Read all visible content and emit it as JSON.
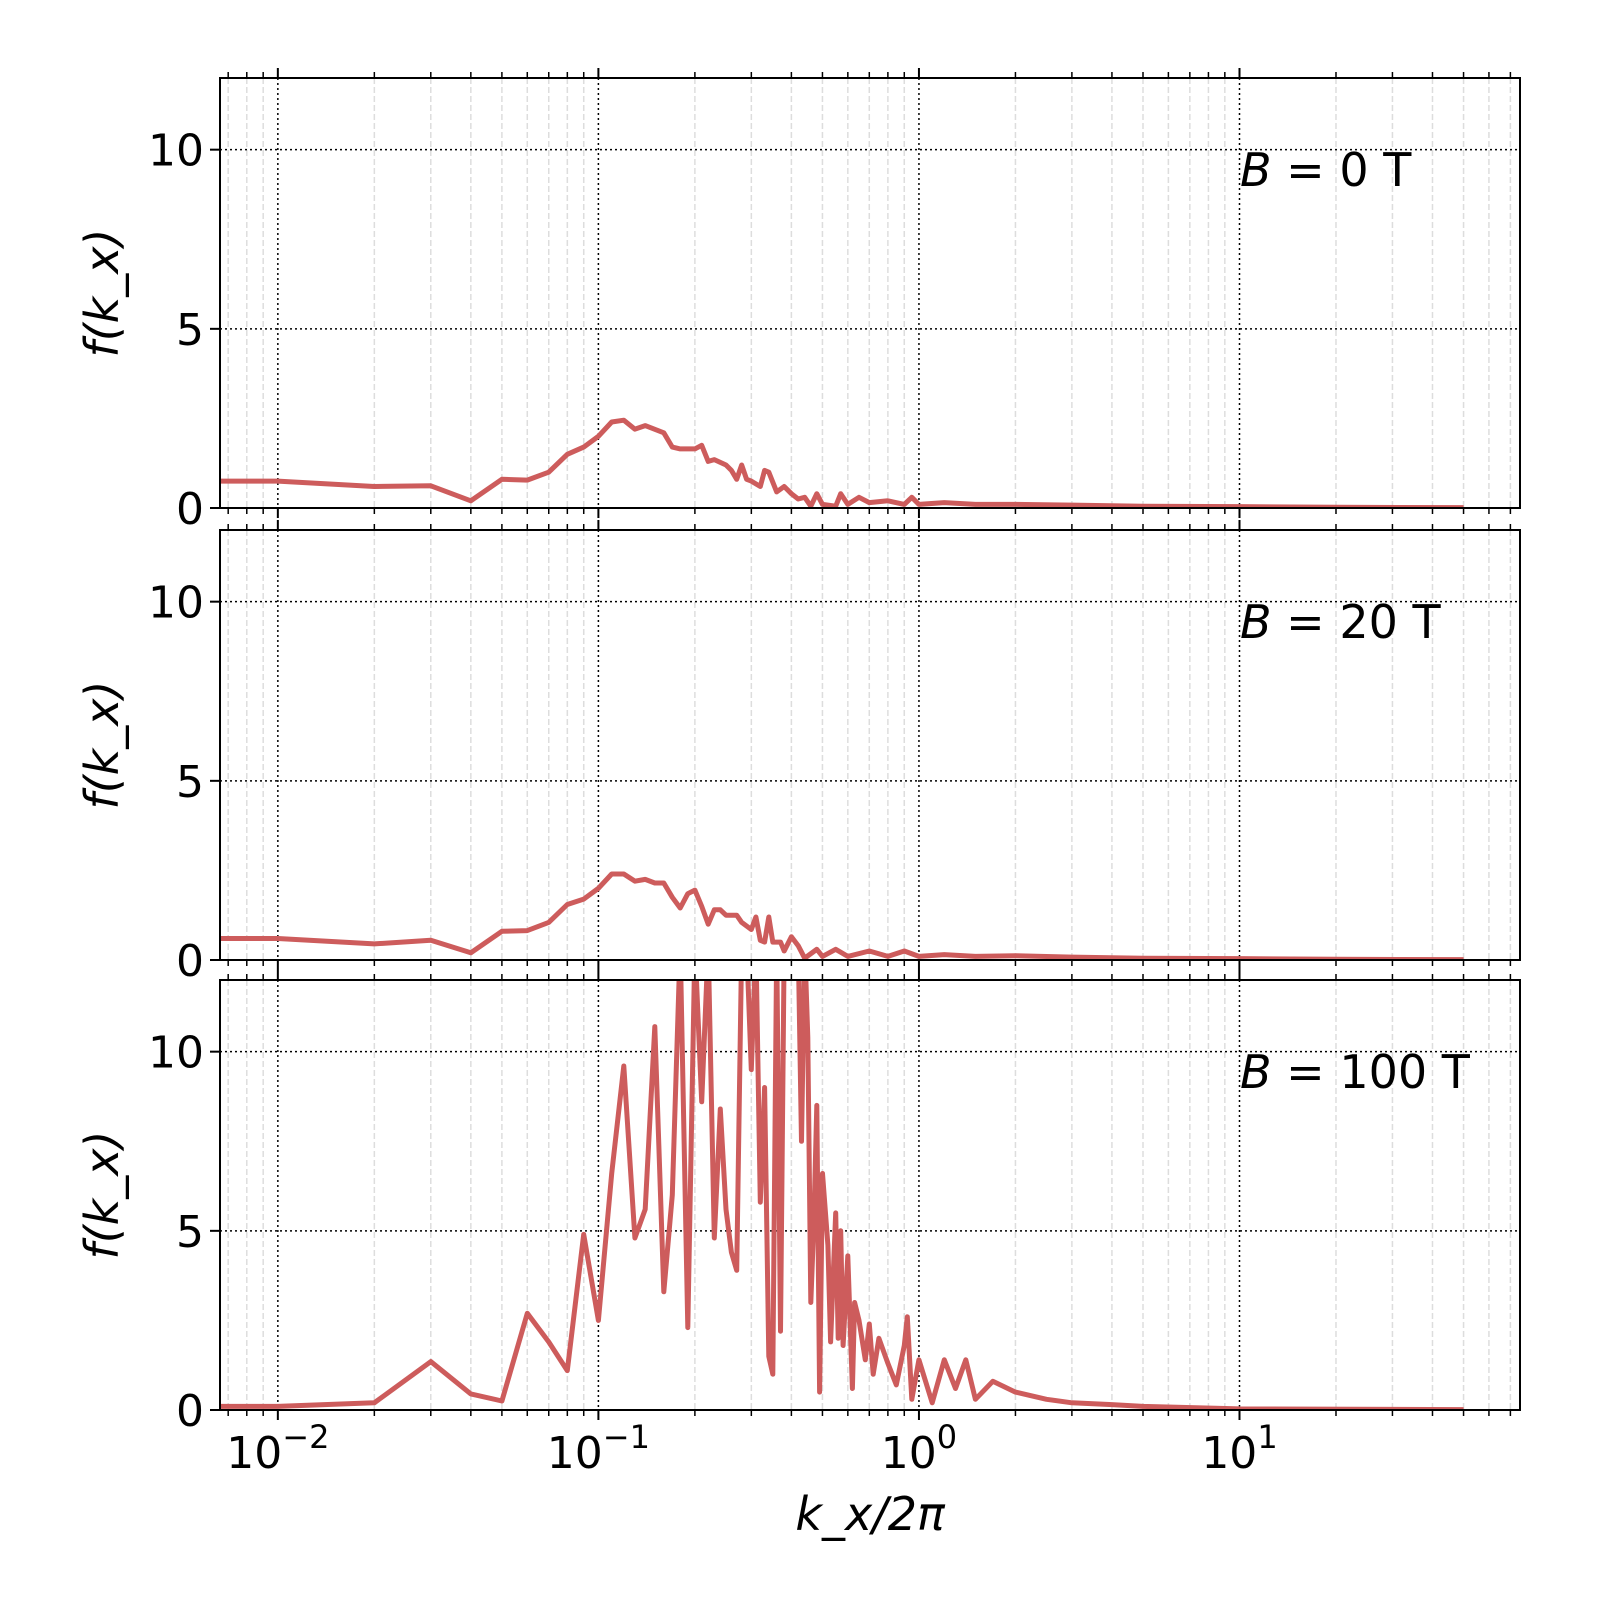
{
  "chart_data": {
    "type": "line",
    "layout": "3 vertically stacked panels sharing x axis",
    "xlabel": "k_x/2π",
    "xscale": "log",
    "xlim": [
      0.0066,
      75
    ],
    "xticks": [
      {
        "v": 0.01,
        "base": "10",
        "exp": "−2"
      },
      {
        "v": 0.1,
        "base": "10",
        "exp": "−1"
      },
      {
        "v": 1,
        "base": "10",
        "exp": "0"
      },
      {
        "v": 10,
        "base": "10",
        "exp": "1"
      }
    ],
    "ylim": [
      0,
      12
    ],
    "yticks": [
      0,
      5,
      10
    ],
    "grid": true,
    "line_color": "#cd5c5c",
    "panels": [
      {
        "ylabel": "f(k_x)",
        "annotation": {
          "var": "B",
          "text": " = 0 T"
        },
        "x": [
          0.0066,
          0.01,
          0.02,
          0.03,
          0.04,
          0.05,
          0.06,
          0.07,
          0.08,
          0.09,
          0.1,
          0.11,
          0.12,
          0.13,
          0.14,
          0.16,
          0.17,
          0.18,
          0.2,
          0.21,
          0.22,
          0.23,
          0.25,
          0.26,
          0.27,
          0.28,
          0.29,
          0.3,
          0.32,
          0.33,
          0.34,
          0.36,
          0.38,
          0.4,
          0.42,
          0.44,
          0.46,
          0.48,
          0.5,
          0.55,
          0.57,
          0.6,
          0.65,
          0.7,
          0.8,
          0.9,
          0.95,
          1.0,
          1.2,
          1.5,
          2,
          3,
          5,
          10,
          20,
          50
        ],
        "y": [
          0.75,
          0.75,
          0.6,
          0.62,
          0.2,
          0.8,
          0.78,
          1.0,
          1.5,
          1.7,
          2.0,
          2.4,
          2.45,
          2.2,
          2.3,
          2.1,
          1.7,
          1.65,
          1.65,
          1.75,
          1.3,
          1.35,
          1.2,
          1.05,
          0.8,
          1.2,
          0.8,
          0.75,
          0.6,
          1.05,
          1.0,
          0.45,
          0.6,
          0.4,
          0.25,
          0.3,
          0.05,
          0.4,
          0.1,
          0.05,
          0.4,
          0.1,
          0.3,
          0.15,
          0.2,
          0.1,
          0.3,
          0.1,
          0.15,
          0.1,
          0.1,
          0.08,
          0.05,
          0.04,
          0.02,
          0.01
        ]
      },
      {
        "ylabel": "f(k_x)",
        "annotation": {
          "var": "B",
          "text": " = 20 T"
        },
        "x": [
          0.0066,
          0.01,
          0.02,
          0.03,
          0.04,
          0.05,
          0.06,
          0.07,
          0.08,
          0.09,
          0.1,
          0.11,
          0.12,
          0.13,
          0.14,
          0.15,
          0.16,
          0.17,
          0.18,
          0.19,
          0.2,
          0.21,
          0.22,
          0.23,
          0.24,
          0.25,
          0.27,
          0.28,
          0.3,
          0.31,
          0.32,
          0.33,
          0.34,
          0.35,
          0.37,
          0.38,
          0.4,
          0.42,
          0.44,
          0.48,
          0.5,
          0.55,
          0.6,
          0.7,
          0.8,
          0.9,
          1.0,
          1.2,
          1.5,
          2,
          3,
          5,
          10,
          20,
          50
        ],
        "y": [
          0.6,
          0.6,
          0.45,
          0.55,
          0.2,
          0.8,
          0.82,
          1.05,
          1.55,
          1.7,
          2.0,
          2.4,
          2.4,
          2.2,
          2.25,
          2.15,
          2.15,
          1.75,
          1.45,
          1.85,
          1.95,
          1.5,
          1.0,
          1.4,
          1.4,
          1.25,
          1.25,
          1.05,
          0.85,
          1.2,
          0.55,
          0.5,
          1.2,
          0.5,
          0.5,
          0.25,
          0.65,
          0.4,
          0.05,
          0.3,
          0.1,
          0.3,
          0.1,
          0.25,
          0.1,
          0.25,
          0.1,
          0.15,
          0.1,
          0.12,
          0.08,
          0.05,
          0.04,
          0.02,
          0.01
        ]
      },
      {
        "ylabel": "f(k_x)",
        "annotation": {
          "var": "B",
          "text": " = 100 T"
        },
        "x": [
          0.0066,
          0.01,
          0.02,
          0.03,
          0.04,
          0.05,
          0.06,
          0.07,
          0.08,
          0.09,
          0.1,
          0.11,
          0.12,
          0.13,
          0.14,
          0.15,
          0.16,
          0.17,
          0.18,
          0.19,
          0.2,
          0.21,
          0.22,
          0.23,
          0.24,
          0.25,
          0.26,
          0.27,
          0.28,
          0.29,
          0.3,
          0.31,
          0.32,
          0.33,
          0.34,
          0.35,
          0.36,
          0.37,
          0.38,
          0.4,
          0.42,
          0.43,
          0.44,
          0.45,
          0.46,
          0.47,
          0.48,
          0.49,
          0.5,
          0.52,
          0.53,
          0.55,
          0.56,
          0.57,
          0.58,
          0.6,
          0.62,
          0.63,
          0.65,
          0.68,
          0.7,
          0.72,
          0.75,
          0.8,
          0.85,
          0.9,
          0.92,
          0.95,
          1.0,
          1.1,
          1.2,
          1.3,
          1.4,
          1.5,
          1.7,
          2,
          2.5,
          3,
          4,
          5,
          10,
          50
        ],
        "y": [
          0.1,
          0.1,
          0.2,
          1.35,
          0.45,
          0.25,
          2.7,
          1.9,
          1.1,
          4.9,
          2.5,
          6.6,
          9.6,
          4.8,
          5.6,
          10.7,
          3.3,
          6.0,
          13,
          2.3,
          13,
          8.6,
          13,
          4.8,
          8.4,
          5.6,
          4.4,
          3.9,
          13,
          13,
          9.5,
          13,
          5.8,
          9.0,
          1.5,
          1.0,
          13,
          2.2,
          13,
          13,
          13,
          7.5,
          13,
          10.4,
          3.0,
          5.2,
          8.5,
          0.5,
          6.6,
          4.6,
          1.9,
          5.5,
          2.0,
          5.0,
          1.8,
          4.3,
          0.6,
          3.0,
          2.5,
          1.4,
          2.4,
          1.0,
          2.0,
          1.3,
          0.7,
          1.8,
          2.6,
          0.3,
          1.4,
          0.2,
          1.4,
          0.6,
          1.4,
          0.3,
          0.8,
          0.5,
          0.3,
          0.2,
          0.15,
          0.1,
          0.03,
          0.01
        ]
      }
    ]
  }
}
